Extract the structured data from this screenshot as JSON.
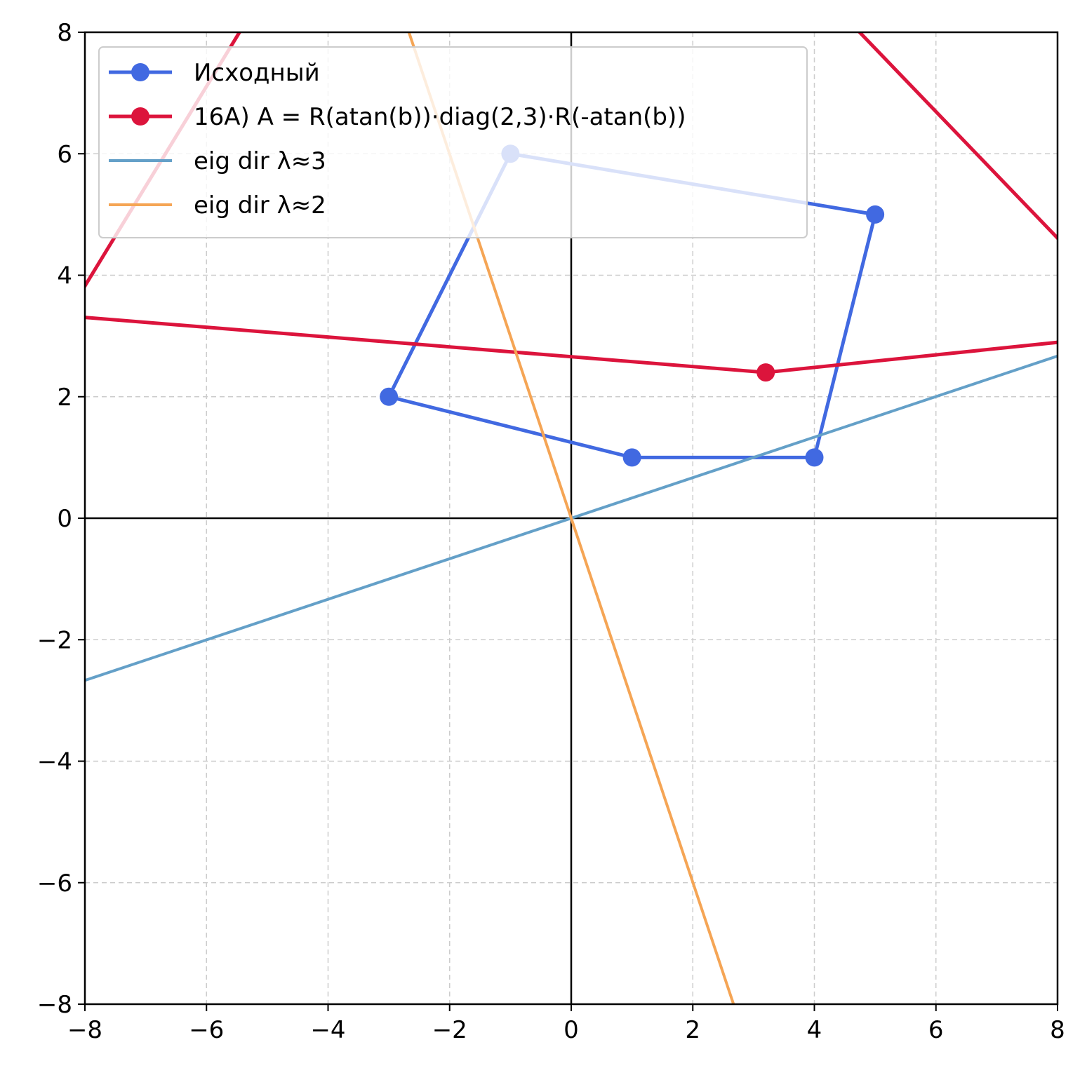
{
  "chart_data": {
    "type": "line",
    "xlim": [
      -8,
      8
    ],
    "ylim": [
      -8,
      8
    ],
    "xticks": [
      -8,
      -6,
      -4,
      -2,
      0,
      2,
      4,
      6,
      8
    ],
    "yticks": [
      -8,
      -6,
      -4,
      -2,
      0,
      2,
      4,
      6,
      8
    ],
    "xtick_labels": [
      "−8",
      "−6",
      "−4",
      "−2",
      "0",
      "2",
      "4",
      "6",
      "8"
    ],
    "ytick_labels": [
      "−8",
      "−6",
      "−4",
      "−2",
      "0",
      "2",
      "4",
      "6",
      "8"
    ],
    "grid": true,
    "axes_through_origin": true,
    "legend_position": "top-left",
    "series": [
      {
        "name": "Исходный",
        "color": "#4169e1",
        "markers": true,
        "closed": true,
        "points": [
          [
            -3,
            2
          ],
          [
            1,
            1
          ],
          [
            4,
            1
          ],
          [
            5,
            5
          ],
          [
            -1,
            6
          ]
        ]
      },
      {
        "name": "16A) A = R(atan(b))·diag(2,3)·R(-atan(b))",
        "color": "#dc143c",
        "markers": true,
        "closed": true,
        "points": [
          [
            -8.3,
            3.33
          ],
          [
            3.2,
            2.4
          ],
          [
            9.5,
            3.05
          ],
          [
            -1.5,
            14.5
          ]
        ]
      },
      {
        "name": "eig dir λ≈3",
        "color": "#64a0c8",
        "markers": false,
        "closed": false,
        "points": [
          [
            -8,
            -2.67
          ],
          [
            8,
            2.67
          ]
        ]
      },
      {
        "name": "eig dir λ≈2",
        "color": "#f5a555",
        "markers": false,
        "closed": false,
        "points": [
          [
            -2.67,
            8
          ],
          [
            2.67,
            -8
          ]
        ]
      }
    ]
  }
}
